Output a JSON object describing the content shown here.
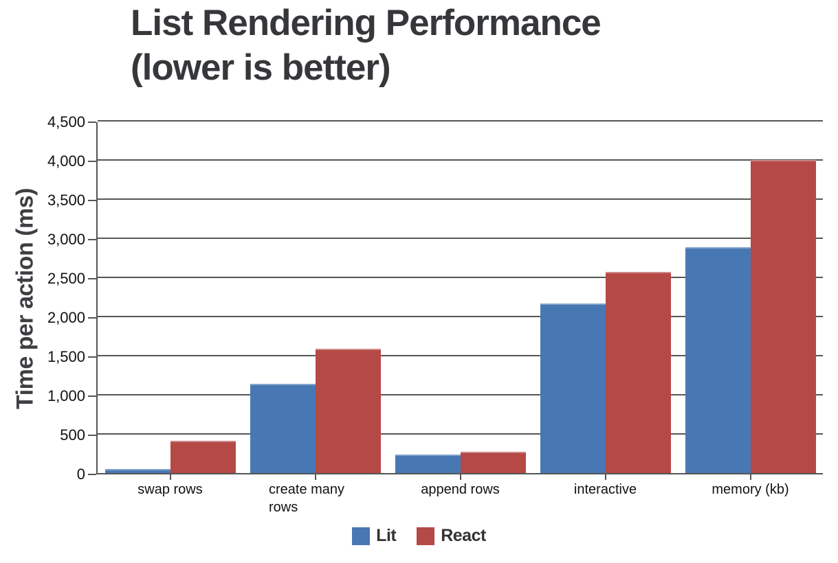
{
  "chart": {
    "title_line1": "List Rendering Performance",
    "title_line2": "(lower is better)"
  },
  "chart_data": {
    "type": "bar",
    "title": "List Rendering Performance (lower is better)",
    "categories": [
      "swap rows",
      "create many rows",
      "append rows",
      "interactive",
      "memory (kb)"
    ],
    "series": [
      {
        "name": "Lit",
        "color": "#4878B4",
        "values": [
          50,
          1140,
          240,
          2170,
          2890
        ]
      },
      {
        "name": "React",
        "color": "#B44946",
        "values": [
          410,
          1590,
          270,
          2570,
          4000
        ]
      }
    ],
    "xlabel": "",
    "ylabel": "Time per action (ms)",
    "ylim": [
      0,
      4500
    ],
    "ytick_step": 500,
    "ytick_labels": [
      "0",
      "500",
      "1,000",
      "1,500",
      "2,000",
      "2,500",
      "3,000",
      "3,500",
      "4,000",
      "4,500"
    ],
    "grid": true,
    "legend_position": "bottom"
  },
  "colors": {
    "background": "#FFFFFF",
    "grid": "#555555",
    "axis": "#555555",
    "title_text": "#35373A",
    "tick_text": "#111111",
    "legend_text": "#333333",
    "lit_blue": "#4878B4",
    "react_red": "#B44946"
  }
}
